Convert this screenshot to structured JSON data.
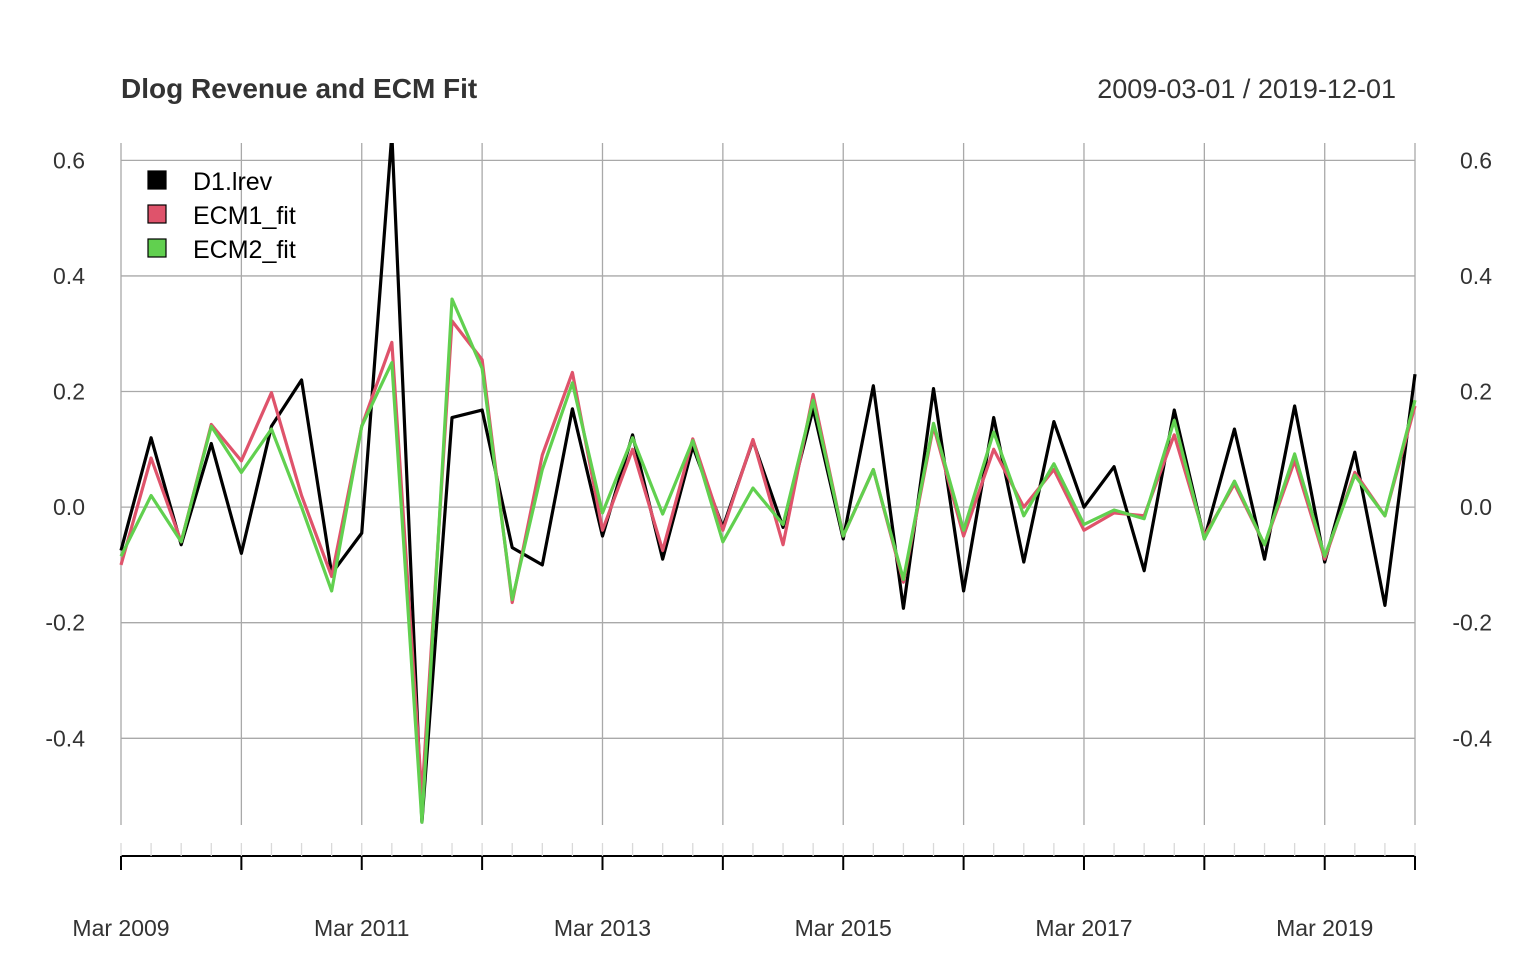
{
  "chart_data": {
    "type": "line",
    "title": "Dlog Revenue and ECM Fit",
    "date_range": "2009-03-01 / 2019-12-01",
    "xlabel": "",
    "ylabel": "",
    "ylim": [
      -0.55,
      0.63
    ],
    "y_ticks": [
      -0.4,
      -0.2,
      0.0,
      0.2,
      0.4,
      0.6
    ],
    "y_tick_labels": [
      "-0.4",
      "-0.2",
      "0.0",
      "0.2",
      "0.4",
      "0.6"
    ],
    "x_start": "2009-03",
    "x_end": "2019-12",
    "x_tick_labels": [
      "Mar 2009",
      "Mar 2011",
      "Mar 2013",
      "Mar 2015",
      "Mar 2017",
      "Mar 2019"
    ],
    "x_grid_years": [
      2009,
      2010,
      2011,
      2012,
      2013,
      2014,
      2015,
      2016,
      2017,
      2018,
      2019
    ],
    "legend_position": "top-left",
    "series": [
      {
        "name": "D1.lrev",
        "color": "#000000",
        "values": [
          -0.075,
          0.12,
          -0.065,
          0.11,
          -0.08,
          0.14,
          0.22,
          -0.115,
          -0.045,
          0.645,
          -0.545,
          0.155,
          0.168,
          -0.07,
          -0.1,
          0.17,
          -0.05,
          0.125,
          -0.09,
          0.105,
          -0.035,
          0.115,
          -0.035,
          0.17,
          -0.055,
          0.21,
          -0.175,
          0.205,
          -0.145,
          0.155,
          -0.095,
          0.148,
          0.0,
          0.07,
          -0.11,
          0.168,
          -0.055,
          0.135,
          -0.09,
          0.175,
          -0.095,
          0.095,
          -0.17,
          0.23
        ]
      },
      {
        "name": "ECM1_fit",
        "color": "#DF536B",
        "values": [
          -0.1,
          0.085,
          -0.06,
          0.143,
          0.08,
          0.198,
          0.02,
          -0.12,
          0.14,
          0.285,
          -0.5,
          0.322,
          0.255,
          -0.165,
          0.09,
          0.233,
          -0.04,
          0.1,
          -0.075,
          0.118,
          -0.04,
          0.117,
          -0.065,
          0.195,
          -0.05,
          0.065,
          -0.13,
          0.14,
          -0.05,
          0.1,
          0.0,
          0.065,
          -0.04,
          -0.01,
          -0.015,
          0.125,
          -0.05,
          0.04,
          -0.065,
          0.08,
          -0.09,
          0.06,
          -0.015,
          0.175
        ]
      },
      {
        "name": "ECM2_fit",
        "color": "#61D04F",
        "values": [
          -0.085,
          0.02,
          -0.06,
          0.14,
          0.06,
          0.135,
          0.0,
          -0.145,
          0.14,
          0.25,
          -0.545,
          0.36,
          0.24,
          -0.16,
          0.065,
          0.215,
          -0.01,
          0.12,
          -0.012,
          0.115,
          -0.06,
          0.033,
          -0.03,
          0.185,
          -0.05,
          0.065,
          -0.125,
          0.145,
          -0.04,
          0.13,
          -0.015,
          0.075,
          -0.03,
          -0.005,
          -0.02,
          0.15,
          -0.055,
          0.045,
          -0.065,
          0.092,
          -0.085,
          0.055,
          -0.015,
          0.185
        ]
      }
    ]
  }
}
